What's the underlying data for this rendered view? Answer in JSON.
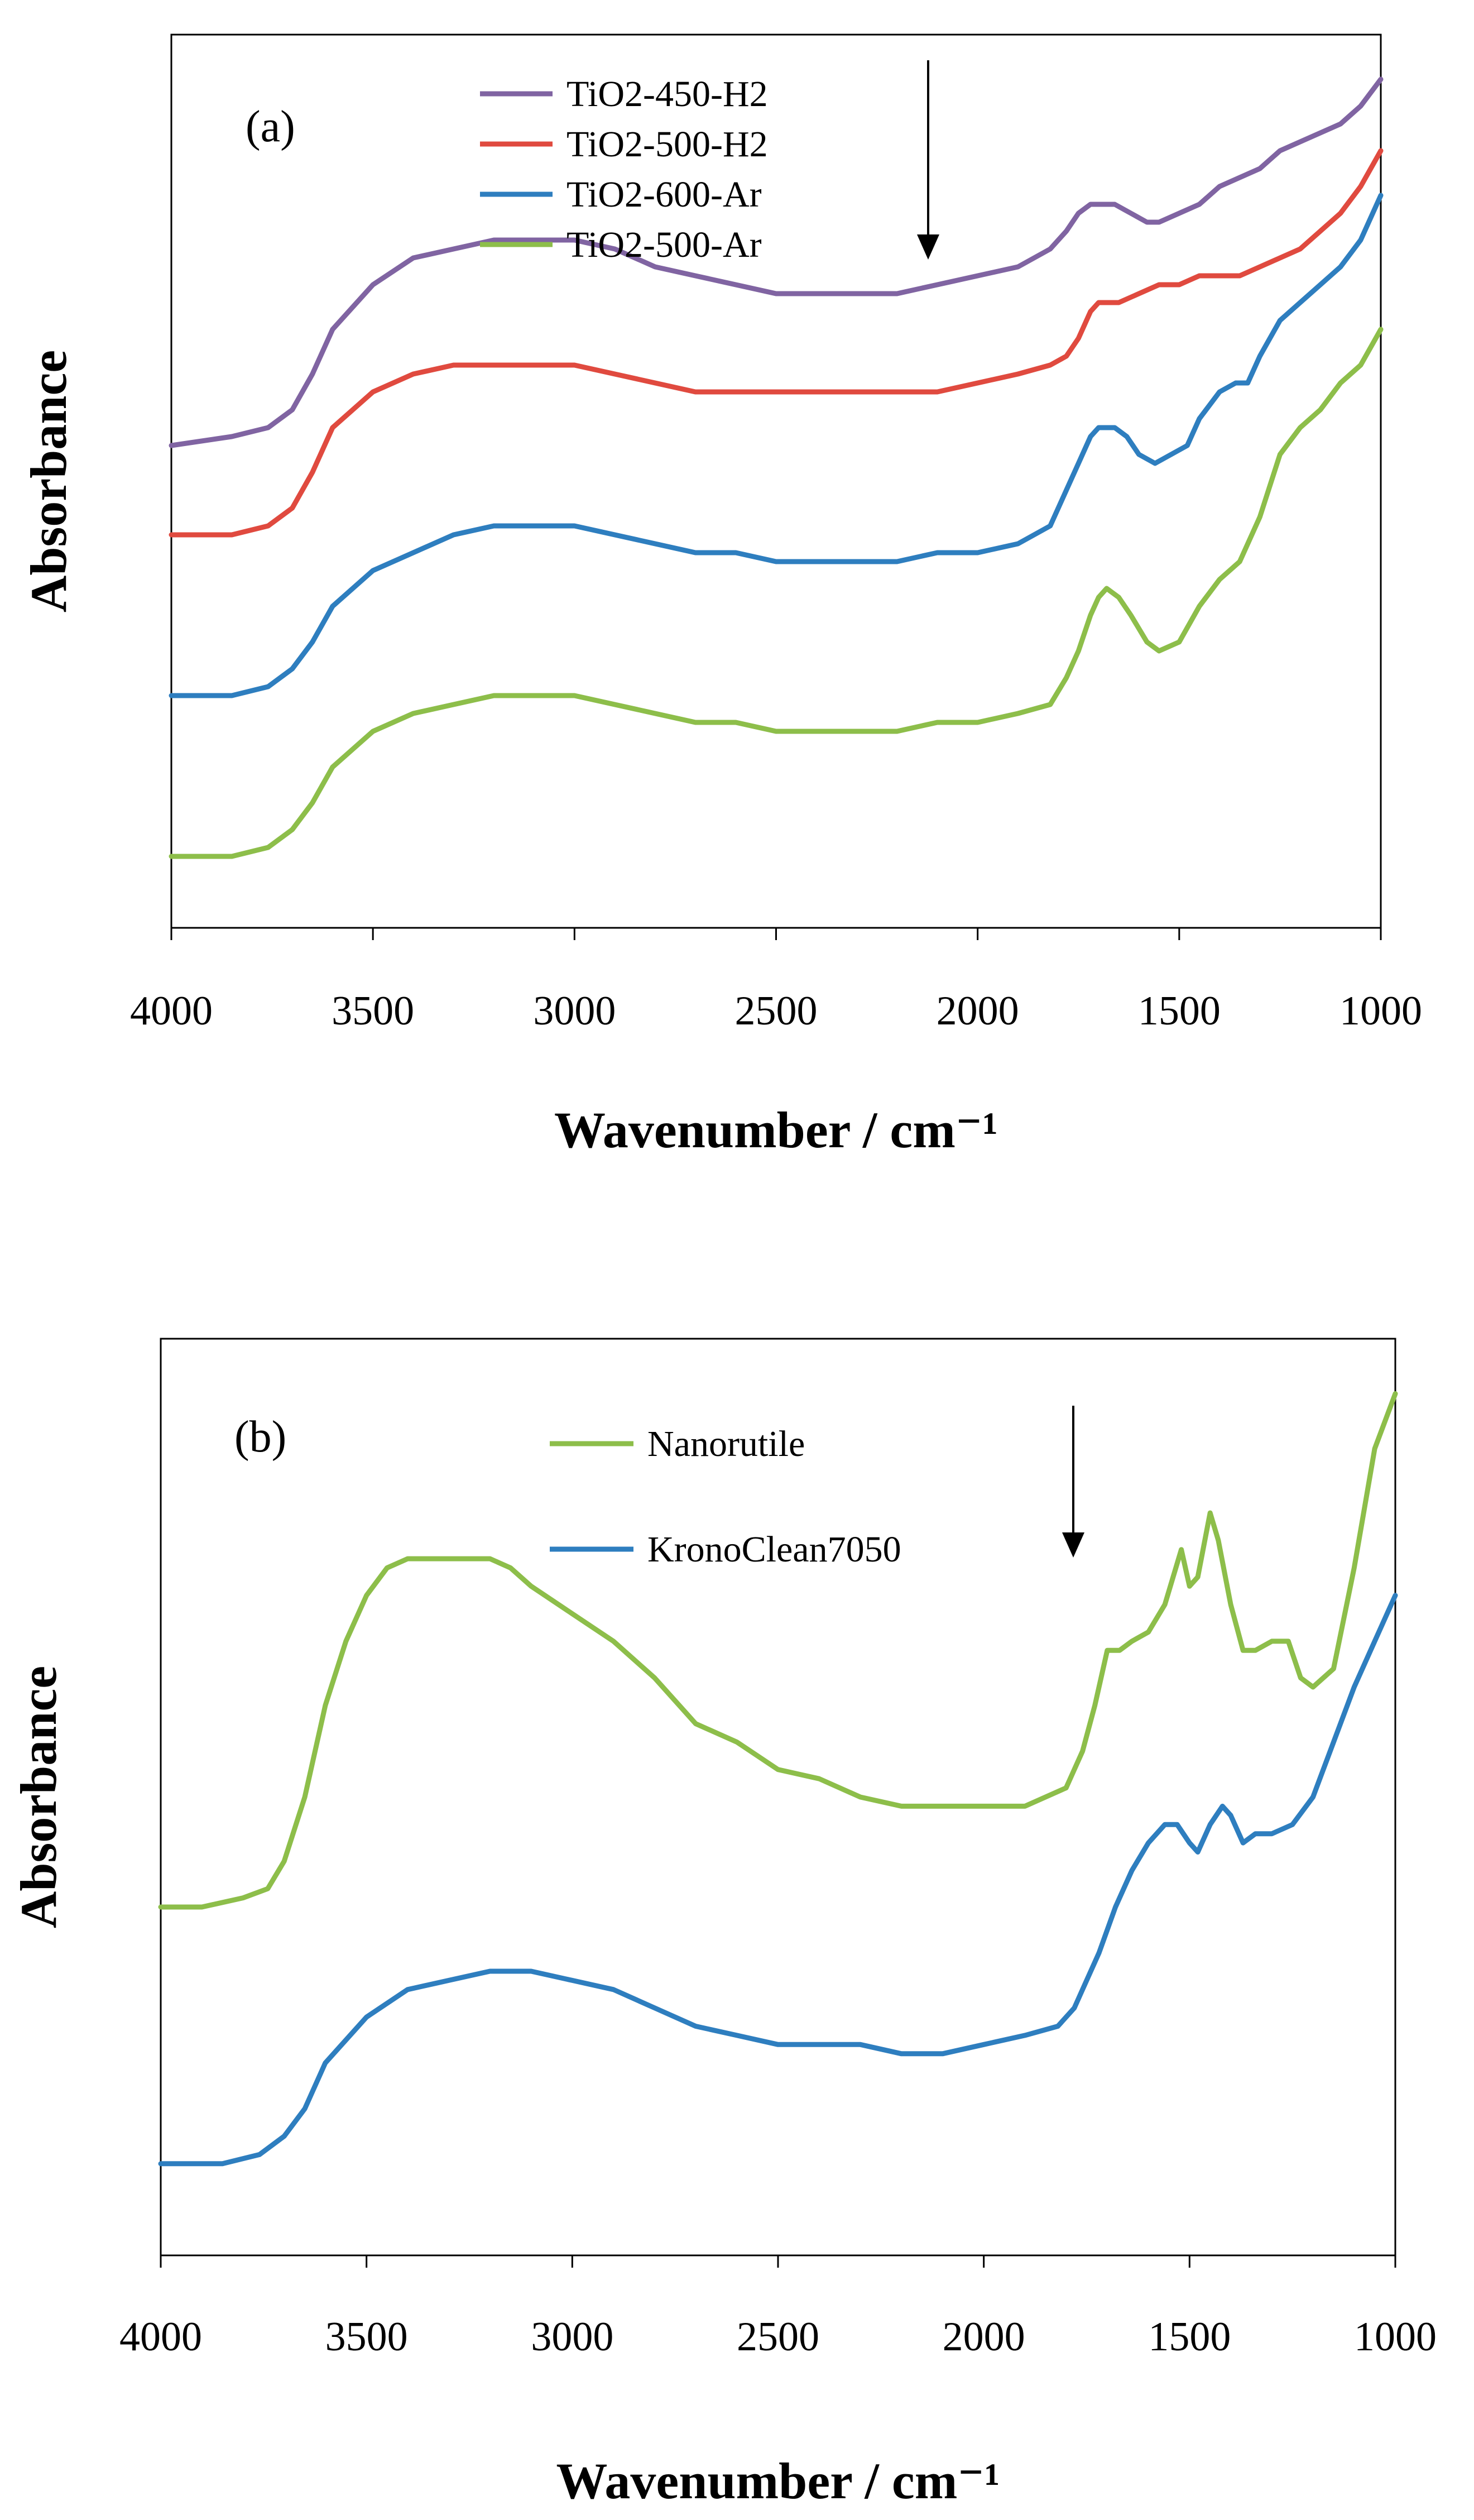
{
  "chart_data": [
    {
      "type": "line",
      "panel_label": "(a)",
      "xlabel": "Wavenumber / cm⁻¹",
      "ylabel": "Absorbance",
      "xlim": [
        4000,
        1000
      ],
      "ylim": [
        0,
        1
      ],
      "x_ticks": [
        4000,
        3500,
        3000,
        2500,
        2000,
        1500,
        1000
      ],
      "y_ticks_shown": false,
      "grid": false,
      "legend_position": "top-center",
      "arrow_annotation": "downward arrow indicating series order",
      "series": [
        {
          "name": "TiO2-450-H2",
          "color": "#8064A2",
          "x": [
            4000,
            3850,
            3760,
            3700,
            3650,
            3600,
            3500,
            3400,
            3300,
            3200,
            3100,
            3000,
            2900,
            2800,
            2700,
            2600,
            2500,
            2400,
            2300,
            2200,
            2100,
            2000,
            1900,
            1820,
            1780,
            1750,
            1720,
            1700,
            1660,
            1620,
            1580,
            1550,
            1500,
            1450,
            1400,
            1350,
            1300,
            1250,
            1200,
            1150,
            1100,
            1050,
            1000
          ],
          "y": [
            0.54,
            0.55,
            0.56,
            0.58,
            0.62,
            0.67,
            0.72,
            0.75,
            0.76,
            0.77,
            0.77,
            0.77,
            0.76,
            0.74,
            0.73,
            0.72,
            0.71,
            0.71,
            0.71,
            0.71,
            0.72,
            0.73,
            0.74,
            0.76,
            0.78,
            0.8,
            0.81,
            0.81,
            0.81,
            0.8,
            0.79,
            0.79,
            0.8,
            0.81,
            0.83,
            0.84,
            0.85,
            0.87,
            0.88,
            0.89,
            0.9,
            0.92,
            0.95
          ]
        },
        {
          "name": "TiO2-500-H2",
          "color": "#E04A3F",
          "x": [
            4000,
            3850,
            3760,
            3700,
            3650,
            3600,
            3500,
            3400,
            3300,
            3200,
            3100,
            3000,
            2900,
            2800,
            2700,
            2600,
            2500,
            2400,
            2300,
            2200,
            2100,
            2000,
            1900,
            1820,
            1780,
            1750,
            1720,
            1700,
            1650,
            1600,
            1550,
            1500,
            1450,
            1400,
            1350,
            1300,
            1250,
            1200,
            1150,
            1100,
            1050,
            1000
          ],
          "y": [
            0.44,
            0.44,
            0.45,
            0.47,
            0.51,
            0.56,
            0.6,
            0.62,
            0.63,
            0.63,
            0.63,
            0.63,
            0.62,
            0.61,
            0.6,
            0.6,
            0.6,
            0.6,
            0.6,
            0.6,
            0.6,
            0.61,
            0.62,
            0.63,
            0.64,
            0.66,
            0.69,
            0.7,
            0.7,
            0.71,
            0.72,
            0.72,
            0.73,
            0.73,
            0.73,
            0.74,
            0.75,
            0.76,
            0.78,
            0.8,
            0.83,
            0.87
          ]
        },
        {
          "name": "TiO2-600-Ar",
          "color": "#2E7EBF",
          "x": [
            4000,
            3850,
            3760,
            3700,
            3650,
            3600,
            3500,
            3400,
            3300,
            3200,
            3100,
            3000,
            2900,
            2800,
            2700,
            2600,
            2500,
            2400,
            2300,
            2200,
            2100,
            2000,
            1900,
            1820,
            1780,
            1750,
            1720,
            1700,
            1660,
            1630,
            1600,
            1560,
            1520,
            1480,
            1450,
            1400,
            1360,
            1330,
            1300,
            1250,
            1200,
            1150,
            1100,
            1050,
            1000
          ],
          "y": [
            0.26,
            0.26,
            0.27,
            0.29,
            0.32,
            0.36,
            0.4,
            0.42,
            0.44,
            0.45,
            0.45,
            0.45,
            0.44,
            0.43,
            0.42,
            0.42,
            0.41,
            0.41,
            0.41,
            0.41,
            0.42,
            0.42,
            0.43,
            0.45,
            0.49,
            0.52,
            0.55,
            0.56,
            0.56,
            0.55,
            0.53,
            0.52,
            0.53,
            0.54,
            0.57,
            0.6,
            0.61,
            0.61,
            0.64,
            0.68,
            0.7,
            0.72,
            0.74,
            0.77,
            0.82
          ]
        },
        {
          "name": "TiO2-500-Ar",
          "color": "#8DBE4A",
          "x": [
            4000,
            3850,
            3760,
            3700,
            3650,
            3600,
            3500,
            3400,
            3300,
            3200,
            3100,
            3000,
            2900,
            2800,
            2700,
            2600,
            2500,
            2400,
            2300,
            2200,
            2100,
            2000,
            1900,
            1820,
            1780,
            1750,
            1720,
            1700,
            1680,
            1650,
            1620,
            1580,
            1550,
            1500,
            1450,
            1400,
            1350,
            1300,
            1250,
            1200,
            1150,
            1100,
            1050,
            1000
          ],
          "y": [
            0.08,
            0.08,
            0.09,
            0.11,
            0.14,
            0.18,
            0.22,
            0.24,
            0.25,
            0.26,
            0.26,
            0.26,
            0.25,
            0.24,
            0.23,
            0.23,
            0.22,
            0.22,
            0.22,
            0.22,
            0.23,
            0.23,
            0.24,
            0.25,
            0.28,
            0.31,
            0.35,
            0.37,
            0.38,
            0.37,
            0.35,
            0.32,
            0.31,
            0.32,
            0.36,
            0.39,
            0.41,
            0.46,
            0.53,
            0.56,
            0.58,
            0.61,
            0.63,
            0.67
          ]
        }
      ]
    },
    {
      "type": "line",
      "panel_label": "(b)",
      "xlabel": "Wavenumber / cm⁻¹",
      "ylabel": "Absorbance",
      "xlim": [
        4000,
        1000
      ],
      "ylim": [
        0,
        1
      ],
      "x_ticks": [
        4000,
        3500,
        3000,
        2500,
        2000,
        1500,
        1000
      ],
      "y_ticks_shown": false,
      "grid": false,
      "legend_position": "top-center",
      "arrow_annotation": "downward arrow indicating series order",
      "series": [
        {
          "name": "Nanorutile",
          "color": "#8DBE4A",
          "x": [
            4000,
            3900,
            3800,
            3740,
            3700,
            3650,
            3600,
            3550,
            3500,
            3450,
            3400,
            3350,
            3300,
            3250,
            3200,
            3150,
            3100,
            3000,
            2900,
            2800,
            2700,
            2600,
            2500,
            2400,
            2300,
            2200,
            2100,
            2000,
            1900,
            1800,
            1760,
            1730,
            1700,
            1670,
            1640,
            1600,
            1560,
            1520,
            1500,
            1480,
            1450,
            1430,
            1400,
            1370,
            1340,
            1300,
            1260,
            1230,
            1200,
            1150,
            1100,
            1050,
            1000
          ],
          "y": [
            0.38,
            0.38,
            0.39,
            0.4,
            0.43,
            0.5,
            0.6,
            0.67,
            0.72,
            0.75,
            0.76,
            0.76,
            0.76,
            0.76,
            0.76,
            0.75,
            0.73,
            0.7,
            0.67,
            0.63,
            0.58,
            0.56,
            0.53,
            0.52,
            0.5,
            0.49,
            0.49,
            0.49,
            0.49,
            0.51,
            0.55,
            0.6,
            0.66,
            0.66,
            0.67,
            0.68,
            0.71,
            0.77,
            0.73,
            0.74,
            0.81,
            0.78,
            0.71,
            0.66,
            0.66,
            0.67,
            0.67,
            0.63,
            0.62,
            0.64,
            0.75,
            0.88,
            0.94
          ]
        },
        {
          "name": "KronoClean7050",
          "color": "#2E7EBF",
          "x": [
            4000,
            3850,
            3760,
            3700,
            3650,
            3600,
            3500,
            3400,
            3300,
            3200,
            3100,
            3000,
            2900,
            2800,
            2700,
            2600,
            2500,
            2400,
            2350,
            2300,
            2200,
            2100,
            2000,
            1900,
            1820,
            1780,
            1760,
            1720,
            1680,
            1640,
            1600,
            1560,
            1530,
            1500,
            1480,
            1450,
            1420,
            1400,
            1370,
            1340,
            1300,
            1250,
            1200,
            1150,
            1100,
            1050,
            1000
          ],
          "y": [
            0.1,
            0.1,
            0.11,
            0.13,
            0.16,
            0.21,
            0.26,
            0.29,
            0.3,
            0.31,
            0.31,
            0.3,
            0.29,
            0.27,
            0.25,
            0.24,
            0.23,
            0.23,
            0.23,
            0.23,
            0.22,
            0.22,
            0.23,
            0.24,
            0.25,
            0.27,
            0.29,
            0.33,
            0.38,
            0.42,
            0.45,
            0.47,
            0.47,
            0.45,
            0.44,
            0.47,
            0.49,
            0.48,
            0.45,
            0.46,
            0.46,
            0.47,
            0.5,
            0.56,
            0.62,
            0.67,
            0.72
          ]
        }
      ]
    }
  ]
}
